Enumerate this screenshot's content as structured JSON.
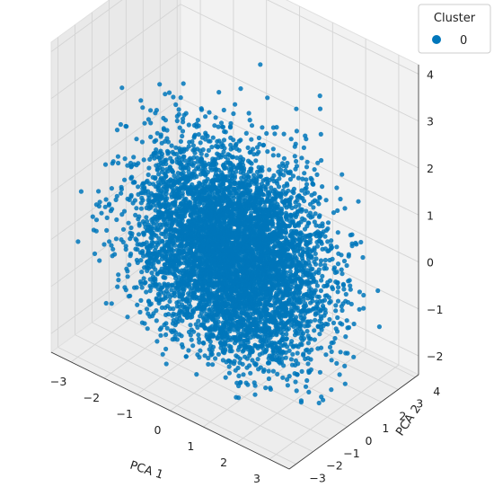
{
  "chart_data": {
    "type": "scatter",
    "projection": "3d",
    "xlabel": "PCA 1",
    "ylabel": "PCA 2",
    "zlabel": "",
    "xticks": [
      -3,
      -2,
      -1,
      0,
      1,
      2,
      3
    ],
    "yticks": [
      -3,
      -2,
      -1,
      0,
      1,
      2,
      3,
      4
    ],
    "zticks": [
      -2,
      -1,
      0,
      1,
      2,
      3,
      4
    ],
    "xlim": [
      -3.6,
      3.6
    ],
    "ylim": [
      -3.4,
      4.2
    ],
    "zlim": [
      -2.4,
      4.2
    ],
    "grid": true,
    "legend": {
      "title": "Cluster",
      "placement": "top-right"
    },
    "series": [
      {
        "name": "0",
        "color": "#0077bb",
        "point_count": 6000,
        "distribution": {
          "x": {
            "center": 0.0,
            "spread": 1.3,
            "range": [
              -3.2,
              3.2
            ]
          },
          "y": {
            "center": 0.2,
            "spread": 1.1,
            "range": [
              -2.6,
              3.8
            ]
          },
          "z": {
            "center": 0.0,
            "spread": 1.0,
            "range": [
              -1.8,
              3.6
            ]
          }
        }
      }
    ]
  }
}
